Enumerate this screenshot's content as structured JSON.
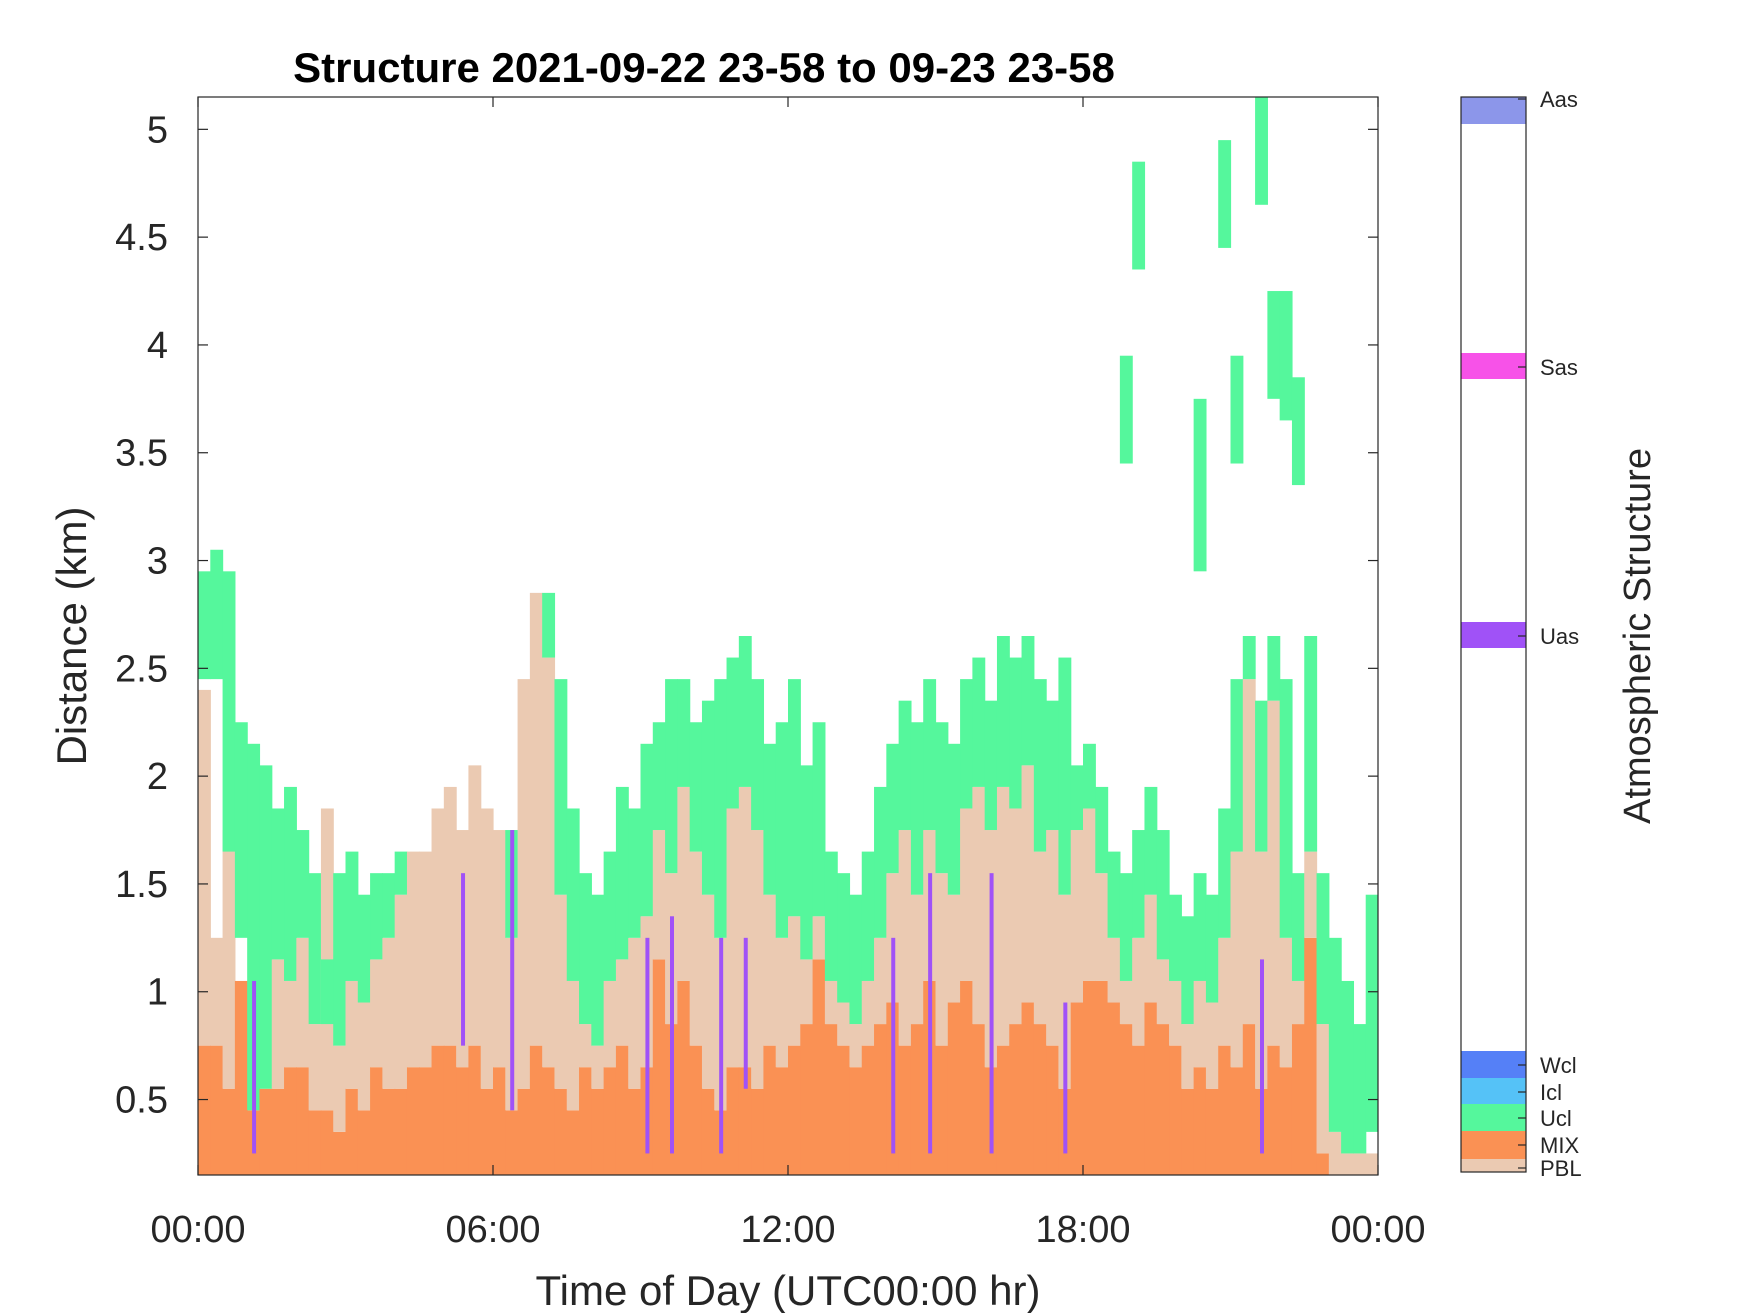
{
  "chart_data": {
    "type": "heatmap",
    "title": "Structure 2021-09-22 23-58 to 09-23 23-58",
    "xlabel": "Time of Day (UTC00:00 hr)",
    "ylabel": "Distance (km)",
    "x_ticks": [
      "00:00",
      "06:00",
      "12:00",
      "18:00",
      "00:00"
    ],
    "x_tick_hours": [
      0,
      6,
      12,
      18,
      24
    ],
    "xlim": [
      0,
      24
    ],
    "ylim": [
      0.15,
      5.15
    ],
    "y_ticks": [
      0.5,
      1,
      1.5,
      2,
      2.5,
      3,
      3.5,
      4,
      4.5,
      5
    ],
    "y_tick_labels": [
      "0.5",
      "1",
      "1.5",
      "2",
      "2.5",
      "3",
      "3.5",
      "4",
      "4.5",
      "5"
    ],
    "colorbar": {
      "title": "Atmospheric Structure",
      "categories": [
        {
          "label": "PBL",
          "color": "#EBCAB2"
        },
        {
          "label": "MIX",
          "color": "#FA9154"
        },
        {
          "label": "Ucl",
          "color": "#55F79C"
        },
        {
          "label": "Icl",
          "color": "#55C2F7"
        },
        {
          "label": "Wcl",
          "color": "#5580F7"
        },
        {
          "label": "Uas",
          "color": "#A052F7"
        },
        {
          "label": "Sas",
          "color": "#F752E8"
        },
        {
          "label": "Aas",
          "color": "#8C96EA"
        }
      ]
    },
    "profiles": [
      {
        "t": 0.0,
        "mix": 0.75,
        "pbl": 2.4,
        "ucl": [
          [
            2.45,
            2.95
          ]
        ]
      },
      {
        "t": 0.25,
        "mix": 0.75,
        "pbl": 1.25,
        "ucl": [
          [
            2.45,
            3.05
          ]
        ]
      },
      {
        "t": 0.5,
        "mix": 0.55,
        "pbl": 1.75,
        "ucl": [
          [
            1.65,
            2.95
          ]
        ]
      },
      {
        "t": 0.75,
        "mix": 1.05,
        "pbl": 1.05,
        "ucl": [
          [
            1.25,
            2.25
          ]
        ]
      },
      {
        "t": 1.0,
        "mix": 0.45,
        "pbl": 0.45,
        "ucl": [
          [
            0.45,
            2.15
          ]
        ],
        "uas": [
          [
            0.25,
            1.05
          ]
        ]
      },
      {
        "t": 1.25,
        "mix": 0.55,
        "pbl": 0.55,
        "ucl": [
          [
            0.55,
            2.05
          ]
        ]
      },
      {
        "t": 1.5,
        "mix": 0.55,
        "pbl": 1.15,
        "ucl": [
          [
            1.15,
            1.85
          ]
        ]
      },
      {
        "t": 1.75,
        "mix": 0.65,
        "pbl": 1.05,
        "ucl": [
          [
            1.05,
            1.95
          ]
        ]
      },
      {
        "t": 2.0,
        "mix": 0.65,
        "pbl": 1.25,
        "ucl": [
          [
            1.25,
            1.75
          ]
        ]
      },
      {
        "t": 2.25,
        "mix": 0.45,
        "pbl": 0.85,
        "ucl": [
          [
            0.85,
            1.55
          ]
        ]
      },
      {
        "t": 2.5,
        "mix": 0.45,
        "pbl": 1.85,
        "ucl": [
          [
            0.85,
            1.15
          ]
        ]
      },
      {
        "t": 2.75,
        "mix": 0.35,
        "pbl": 0.75,
        "ucl": [
          [
            0.75,
            1.55
          ]
        ]
      },
      {
        "t": 3.0,
        "mix": 0.55,
        "pbl": 1.05,
        "ucl": [
          [
            1.05,
            1.65
          ]
        ]
      },
      {
        "t": 3.25,
        "mix": 0.45,
        "pbl": 0.95,
        "ucl": [
          [
            0.95,
            1.45
          ]
        ]
      },
      {
        "t": 3.5,
        "mix": 0.65,
        "pbl": 1.15,
        "ucl": [
          [
            1.15,
            1.55
          ]
        ]
      },
      {
        "t": 3.75,
        "mix": 0.55,
        "pbl": 1.25,
        "ucl": [
          [
            1.25,
            1.55
          ]
        ]
      },
      {
        "t": 4.0,
        "mix": 0.55,
        "pbl": 1.45,
        "ucl": [
          [
            1.45,
            1.65
          ]
        ]
      },
      {
        "t": 4.25,
        "mix": 0.65,
        "pbl": 1.65,
        "ucl": []
      },
      {
        "t": 4.5,
        "mix": 0.65,
        "pbl": 1.65,
        "ucl": []
      },
      {
        "t": 4.75,
        "mix": 0.75,
        "pbl": 1.85,
        "ucl": []
      },
      {
        "t": 5.0,
        "mix": 0.75,
        "pbl": 1.95,
        "ucl": []
      },
      {
        "t": 5.25,
        "mix": 0.65,
        "pbl": 1.75,
        "ucl": [],
        "uas": [
          [
            0.75,
            1.55
          ]
        ]
      },
      {
        "t": 5.5,
        "mix": 0.75,
        "pbl": 2.05,
        "ucl": []
      },
      {
        "t": 5.75,
        "mix": 0.55,
        "pbl": 1.85,
        "ucl": []
      },
      {
        "t": 6.0,
        "mix": 0.65,
        "pbl": 1.75,
        "ucl": []
      },
      {
        "t": 6.25,
        "mix": 0.45,
        "pbl": 1.25,
        "ucl": [
          [
            1.25,
            1.75
          ]
        ],
        "uas": [
          [
            0.45,
            1.75
          ]
        ]
      },
      {
        "t": 6.5,
        "mix": 0.55,
        "pbl": 2.45,
        "ucl": []
      },
      {
        "t": 6.75,
        "mix": 0.75,
        "pbl": 2.85,
        "ucl": []
      },
      {
        "t": 7.0,
        "mix": 0.65,
        "pbl": 2.55,
        "ucl": [
          [
            2.55,
            2.85
          ]
        ]
      },
      {
        "t": 7.25,
        "mix": 0.55,
        "pbl": 1.45,
        "ucl": [
          [
            1.45,
            2.45
          ]
        ]
      },
      {
        "t": 7.5,
        "mix": 0.45,
        "pbl": 1.05,
        "ucl": [
          [
            1.05,
            1.85
          ]
        ]
      },
      {
        "t": 7.75,
        "mix": 0.65,
        "pbl": 0.85,
        "ucl": [
          [
            0.85,
            1.55
          ]
        ]
      },
      {
        "t": 8.0,
        "mix": 0.55,
        "pbl": 0.75,
        "ucl": [
          [
            0.75,
            1.45
          ]
        ]
      },
      {
        "t": 8.25,
        "mix": 0.65,
        "pbl": 1.05,
        "ucl": [
          [
            1.05,
            1.65
          ]
        ]
      },
      {
        "t": 8.5,
        "mix": 0.75,
        "pbl": 1.15,
        "ucl": [
          [
            1.15,
            1.95
          ]
        ]
      },
      {
        "t": 8.75,
        "mix": 0.55,
        "pbl": 1.25,
        "ucl": [
          [
            1.25,
            1.85
          ]
        ]
      },
      {
        "t": 9.0,
        "mix": 0.65,
        "pbl": 1.35,
        "ucl": [
          [
            1.35,
            2.15
          ]
        ],
        "uas": [
          [
            0.25,
            1.25
          ]
        ]
      },
      {
        "t": 9.25,
        "mix": 1.15,
        "pbl": 1.75,
        "ucl": [
          [
            1.75,
            2.25
          ]
        ]
      },
      {
        "t": 9.5,
        "mix": 0.85,
        "pbl": 1.55,
        "ucl": [
          [
            1.55,
            2.45
          ]
        ],
        "uas": [
          [
            0.25,
            1.35
          ]
        ]
      },
      {
        "t": 9.75,
        "mix": 1.05,
        "pbl": 1.95,
        "ucl": [
          [
            1.95,
            2.45
          ]
        ]
      },
      {
        "t": 10.0,
        "mix": 0.75,
        "pbl": 1.65,
        "ucl": [
          [
            1.65,
            2.25
          ]
        ]
      },
      {
        "t": 10.25,
        "mix": 0.55,
        "pbl": 1.45,
        "ucl": [
          [
            1.45,
            2.35
          ]
        ]
      },
      {
        "t": 10.5,
        "mix": 0.45,
        "pbl": 1.25,
        "ucl": [
          [
            1.25,
            2.45
          ]
        ],
        "uas": [
          [
            0.25,
            1.25
          ]
        ]
      },
      {
        "t": 10.75,
        "mix": 0.65,
        "pbl": 1.85,
        "ucl": [
          [
            1.85,
            2.55
          ]
        ]
      },
      {
        "t": 11.0,
        "mix": 0.65,
        "pbl": 1.95,
        "ucl": [
          [
            1.95,
            2.65
          ]
        ],
        "uas": [
          [
            0.55,
            1.25
          ]
        ]
      },
      {
        "t": 11.25,
        "mix": 0.55,
        "pbl": 1.75,
        "ucl": [
          [
            1.75,
            2.45
          ]
        ]
      },
      {
        "t": 11.5,
        "mix": 0.75,
        "pbl": 1.45,
        "ucl": [
          [
            1.45,
            2.15
          ]
        ]
      },
      {
        "t": 11.75,
        "mix": 0.65,
        "pbl": 1.25,
        "ucl": [
          [
            1.25,
            2.25
          ]
        ]
      },
      {
        "t": 12.0,
        "mix": 0.75,
        "pbl": 1.35,
        "ucl": [
          [
            1.35,
            2.45
          ]
        ]
      },
      {
        "t": 12.25,
        "mix": 0.85,
        "pbl": 1.15,
        "ucl": [
          [
            1.15,
            2.05
          ]
        ]
      },
      {
        "t": 12.5,
        "mix": 1.15,
        "pbl": 1.35,
        "ucl": [
          [
            1.35,
            2.25
          ]
        ]
      },
      {
        "t": 12.75,
        "mix": 0.85,
        "pbl": 1.05,
        "ucl": [
          [
            1.05,
            1.65
          ]
        ]
      },
      {
        "t": 13.0,
        "mix": 0.75,
        "pbl": 0.95,
        "ucl": [
          [
            0.95,
            1.55
          ]
        ]
      },
      {
        "t": 13.25,
        "mix": 0.65,
        "pbl": 0.85,
        "ucl": [
          [
            0.85,
            1.45
          ]
        ]
      },
      {
        "t": 13.5,
        "mix": 0.75,
        "pbl": 1.05,
        "ucl": [
          [
            1.05,
            1.65
          ]
        ]
      },
      {
        "t": 13.75,
        "mix": 0.85,
        "pbl": 1.25,
        "ucl": [
          [
            1.25,
            1.95
          ]
        ]
      },
      {
        "t": 14.0,
        "mix": 0.95,
        "pbl": 1.55,
        "ucl": [
          [
            1.55,
            2.15
          ]
        ],
        "uas": [
          [
            0.25,
            1.25
          ]
        ]
      },
      {
        "t": 14.25,
        "mix": 0.75,
        "pbl": 1.75,
        "ucl": [
          [
            1.75,
            2.35
          ]
        ]
      },
      {
        "t": 14.5,
        "mix": 0.85,
        "pbl": 1.45,
        "ucl": [
          [
            1.45,
            2.25
          ]
        ]
      },
      {
        "t": 14.75,
        "mix": 1.05,
        "pbl": 1.75,
        "ucl": [
          [
            1.75,
            2.45
          ]
        ],
        "uas": [
          [
            0.25,
            1.55
          ]
        ]
      },
      {
        "t": 15.0,
        "mix": 0.75,
        "pbl": 1.55,
        "ucl": [
          [
            1.55,
            2.25
          ]
        ]
      },
      {
        "t": 15.25,
        "mix": 0.95,
        "pbl": 1.45,
        "ucl": [
          [
            1.45,
            2.15
          ]
        ]
      },
      {
        "t": 15.5,
        "mix": 1.05,
        "pbl": 1.85,
        "ucl": [
          [
            1.85,
            2.45
          ]
        ]
      },
      {
        "t": 15.75,
        "mix": 0.85,
        "pbl": 1.95,
        "ucl": [
          [
            1.95,
            2.55
          ]
        ]
      },
      {
        "t": 16.0,
        "mix": 0.65,
        "pbl": 1.75,
        "ucl": [
          [
            1.75,
            2.35
          ]
        ],
        "uas": [
          [
            0.25,
            1.55
          ]
        ]
      },
      {
        "t": 16.25,
        "mix": 0.75,
        "pbl": 1.95,
        "ucl": [
          [
            1.95,
            2.65
          ]
        ]
      },
      {
        "t": 16.5,
        "mix": 0.85,
        "pbl": 1.85,
        "ucl": [
          [
            1.85,
            2.55
          ]
        ]
      },
      {
        "t": 16.75,
        "mix": 0.95,
        "pbl": 2.05,
        "ucl": [
          [
            2.05,
            2.65
          ]
        ]
      },
      {
        "t": 17.0,
        "mix": 0.85,
        "pbl": 1.65,
        "ucl": [
          [
            1.65,
            2.45
          ]
        ]
      },
      {
        "t": 17.25,
        "mix": 0.75,
        "pbl": 1.75,
        "ucl": [
          [
            1.75,
            2.35
          ]
        ]
      },
      {
        "t": 17.5,
        "mix": 0.55,
        "pbl": 1.45,
        "ucl": [
          [
            1.45,
            2.55
          ]
        ],
        "uas": [
          [
            0.25,
            0.95
          ]
        ]
      },
      {
        "t": 17.75,
        "mix": 0.95,
        "pbl": 1.75,
        "ucl": [
          [
            1.75,
            2.05
          ]
        ]
      },
      {
        "t": 18.0,
        "mix": 1.05,
        "pbl": 1.85,
        "ucl": [
          [
            1.85,
            2.15
          ]
        ]
      },
      {
        "t": 18.25,
        "mix": 1.05,
        "pbl": 1.55,
        "ucl": [
          [
            1.55,
            1.95
          ]
        ]
      },
      {
        "t": 18.5,
        "mix": 0.95,
        "pbl": 1.25,
        "ucl": [
          [
            1.25,
            1.65
          ]
        ]
      },
      {
        "t": 18.75,
        "mix": 0.85,
        "pbl": 1.05,
        "ucl": [
          [
            1.05,
            1.55
          ],
          [
            3.45,
            3.95
          ]
        ]
      },
      {
        "t": 19.0,
        "mix": 0.75,
        "pbl": 1.25,
        "ucl": [
          [
            1.25,
            1.75
          ],
          [
            4.35,
            4.85
          ]
        ]
      },
      {
        "t": 19.25,
        "mix": 0.95,
        "pbl": 1.45,
        "ucl": [
          [
            1.45,
            1.95
          ]
        ]
      },
      {
        "t": 19.5,
        "mix": 0.85,
        "pbl": 1.15,
        "ucl": [
          [
            1.15,
            1.75
          ]
        ]
      },
      {
        "t": 19.75,
        "mix": 0.75,
        "pbl": 1.05,
        "ucl": [
          [
            1.05,
            1.45
          ]
        ]
      },
      {
        "t": 20.0,
        "mix": 0.55,
        "pbl": 0.85,
        "ucl": [
          [
            0.85,
            1.35
          ]
        ]
      },
      {
        "t": 20.25,
        "mix": 0.65,
        "pbl": 1.05,
        "ucl": [
          [
            1.05,
            1.55
          ],
          [
            2.95,
            3.75
          ]
        ]
      },
      {
        "t": 20.5,
        "mix": 0.55,
        "pbl": 0.95,
        "ucl": [
          [
            0.95,
            1.45
          ]
        ]
      },
      {
        "t": 20.75,
        "mix": 0.75,
        "pbl": 1.25,
        "ucl": [
          [
            1.25,
            1.85
          ],
          [
            4.45,
            4.95
          ]
        ]
      },
      {
        "t": 21.0,
        "mix": 0.65,
        "pbl": 1.65,
        "ucl": [
          [
            1.65,
            2.45
          ],
          [
            3.45,
            3.95
          ]
        ]
      },
      {
        "t": 21.25,
        "mix": 0.85,
        "pbl": 2.45,
        "ucl": [
          [
            2.45,
            2.65
          ]
        ]
      },
      {
        "t": 21.5,
        "mix": 0.55,
        "pbl": 1.65,
        "ucl": [
          [
            1.65,
            2.35
          ],
          [
            4.65,
            5.15
          ]
        ],
        "uas": [
          [
            0.25,
            1.15
          ]
        ]
      },
      {
        "t": 21.75,
        "mix": 0.75,
        "pbl": 2.35,
        "ucl": [
          [
            2.35,
            2.65
          ],
          [
            3.75,
            4.25
          ]
        ]
      },
      {
        "t": 22.0,
        "mix": 0.65,
        "pbl": 1.25,
        "ucl": [
          [
            1.25,
            2.45
          ],
          [
            3.65,
            4.25
          ]
        ]
      },
      {
        "t": 22.25,
        "mix": 0.85,
        "pbl": 1.05,
        "ucl": [
          [
            1.05,
            1.55
          ],
          [
            3.35,
            3.85
          ]
        ]
      },
      {
        "t": 22.5,
        "mix": 1.25,
        "pbl": 1.65,
        "ucl": [
          [
            1.65,
            2.65
          ]
        ]
      },
      {
        "t": 22.75,
        "mix": 0.25,
        "pbl": 0.85,
        "ucl": [
          [
            0.85,
            1.55
          ]
        ]
      },
      {
        "t": 23.0,
        "mix": 0.15,
        "pbl": 0.35,
        "ucl": [
          [
            0.35,
            1.25
          ]
        ]
      },
      {
        "t": 23.25,
        "mix": 0.15,
        "pbl": 0.25,
        "ucl": [
          [
            0.25,
            1.05
          ]
        ]
      },
      {
        "t": 23.5,
        "mix": 0.15,
        "pbl": 0.25,
        "ucl": [
          [
            0.25,
            0.85
          ]
        ]
      },
      {
        "t": 23.75,
        "mix": 0.15,
        "pbl": 0.25,
        "ucl": [
          [
            0.35,
            1.45
          ]
        ]
      }
    ]
  }
}
